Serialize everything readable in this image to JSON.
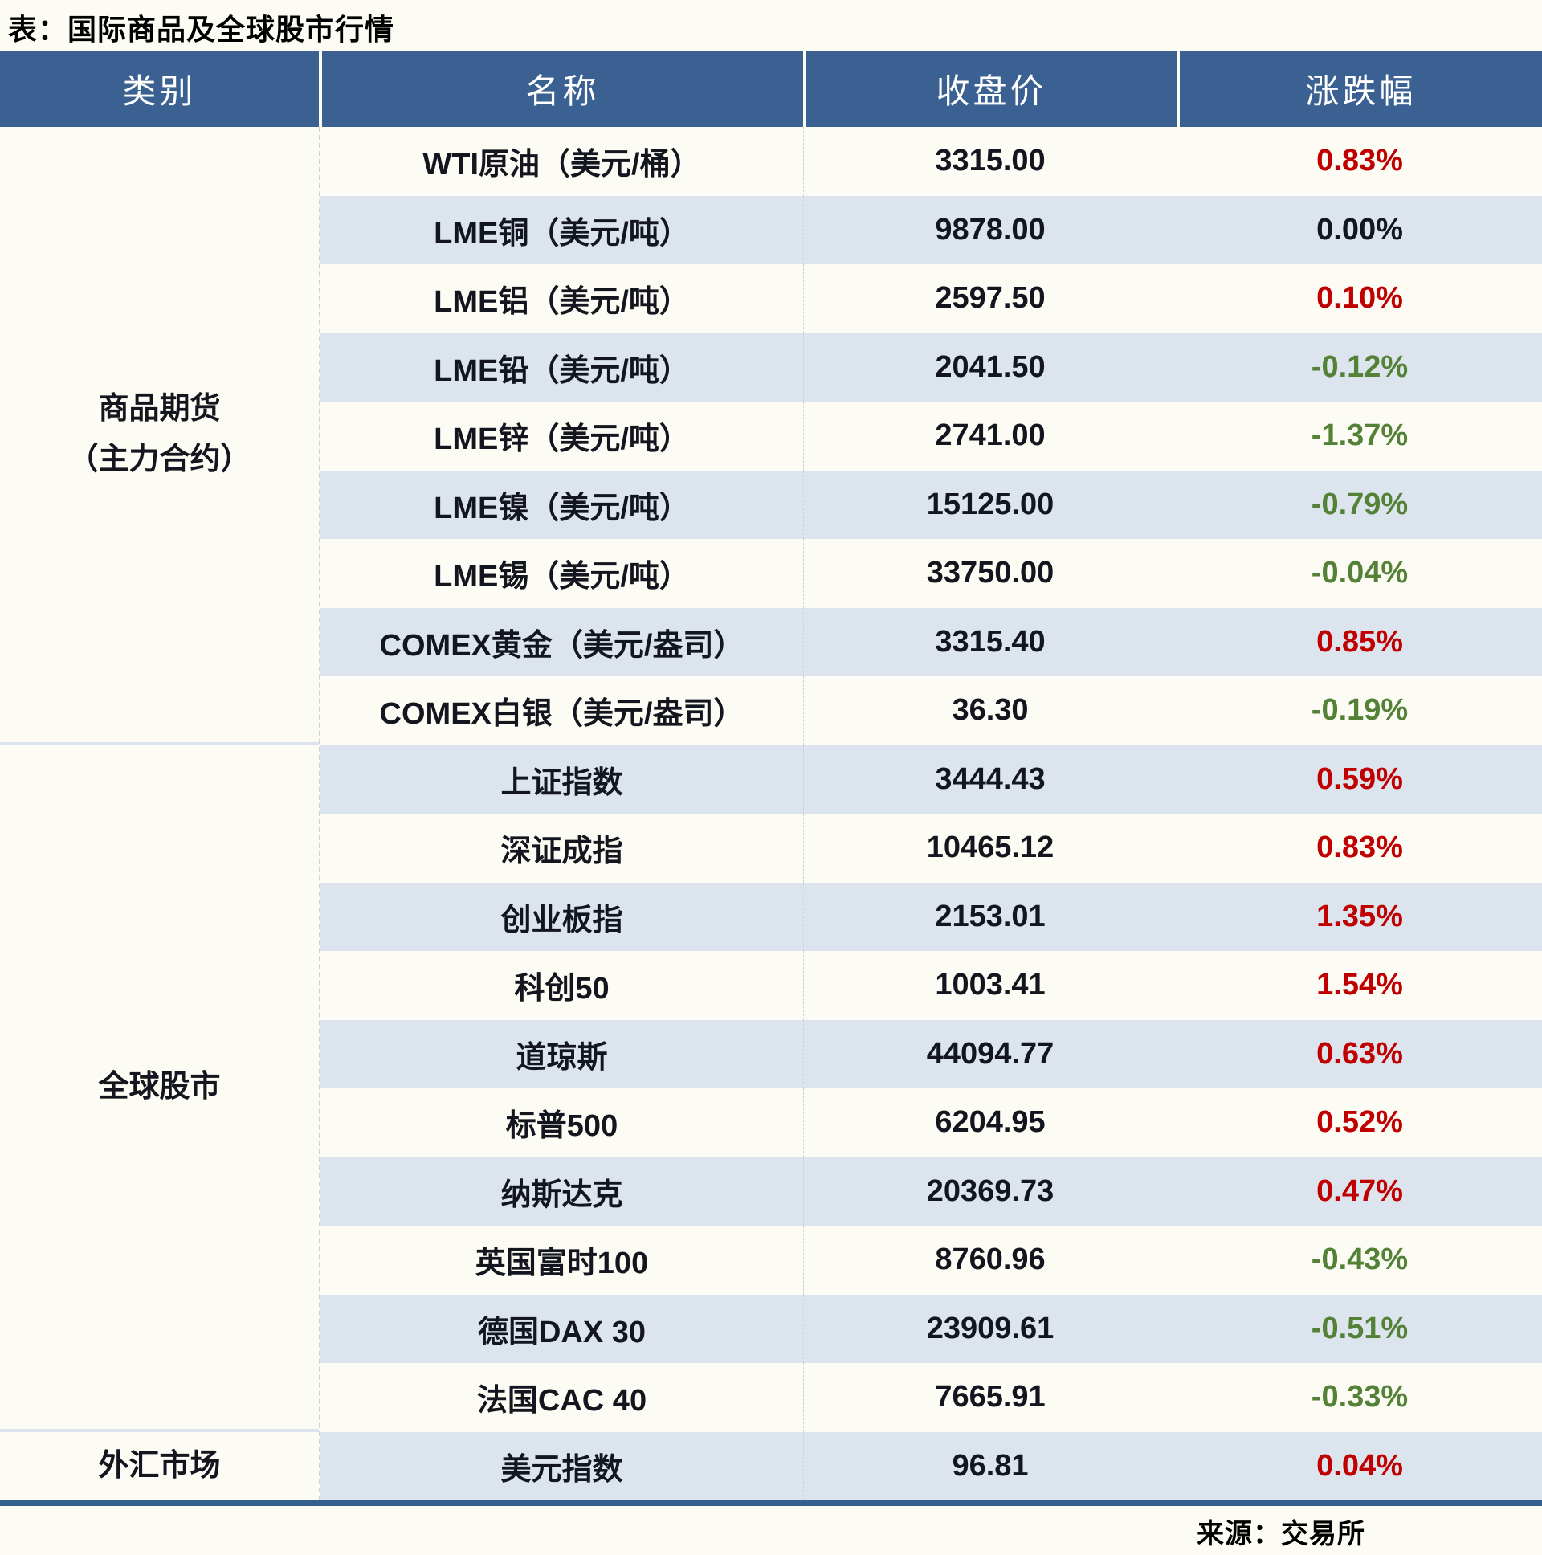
{
  "title": "表：国际商品及全球股市行情",
  "source": "来源：交易所",
  "columns": [
    "类别",
    "名称",
    "收盘价",
    "涨跌幅"
  ],
  "sections": [
    {
      "category_lines": [
        "商品期货",
        "（主力合约）"
      ],
      "rows": [
        {
          "name": "WTI原油（美元/桶）",
          "close": "3315.00",
          "change": "0.83%",
          "direction": "up"
        },
        {
          "name": "LME铜（美元/吨）",
          "close": "9878.00",
          "change": "0.00%",
          "direction": "flat"
        },
        {
          "name": "LME铝（美元/吨）",
          "close": "2597.50",
          "change": "0.10%",
          "direction": "up"
        },
        {
          "name": "LME铅（美元/吨）",
          "close": "2041.50",
          "change": "-0.12%",
          "direction": "down"
        },
        {
          "name": "LME锌（美元/吨）",
          "close": "2741.00",
          "change": "-1.37%",
          "direction": "down"
        },
        {
          "name": "LME镍（美元/吨）",
          "close": "15125.00",
          "change": "-0.79%",
          "direction": "down"
        },
        {
          "name": "LME锡（美元/吨）",
          "close": "33750.00",
          "change": "-0.04%",
          "direction": "down"
        },
        {
          "name": "COMEX黄金（美元/盎司）",
          "close": "3315.40",
          "change": "0.85%",
          "direction": "up"
        },
        {
          "name": "COMEX白银（美元/盎司）",
          "close": "36.30",
          "change": "-0.19%",
          "direction": "down"
        }
      ]
    },
    {
      "category_lines": [
        "全球股市"
      ],
      "rows": [
        {
          "name": "上证指数",
          "close": "3444.43",
          "change": "0.59%",
          "direction": "up"
        },
        {
          "name": "深证成指",
          "close": "10465.12",
          "change": "0.83%",
          "direction": "up"
        },
        {
          "name": "创业板指",
          "close": "2153.01",
          "change": "1.35%",
          "direction": "up"
        },
        {
          "name": "科创50",
          "close": "1003.41",
          "change": "1.54%",
          "direction": "up"
        },
        {
          "name": "道琼斯",
          "close": "44094.77",
          "change": "0.63%",
          "direction": "up"
        },
        {
          "name": "标普500",
          "close": "6204.95",
          "change": "0.52%",
          "direction": "up"
        },
        {
          "name": "纳斯达克",
          "close": "20369.73",
          "change": "0.47%",
          "direction": "up"
        },
        {
          "name": "英国富时100",
          "close": "8760.96",
          "change": "-0.43%",
          "direction": "down"
        },
        {
          "name": "德国DAX 30",
          "close": "23909.61",
          "change": "-0.51%",
          "direction": "down"
        },
        {
          "name": "法国CAC 40",
          "close": "7665.91",
          "change": "-0.33%",
          "direction": "down"
        }
      ]
    },
    {
      "category_lines": [
        "外汇市场"
      ],
      "rows": [
        {
          "name": "美元指数",
          "close": "96.81",
          "change": "0.04%",
          "direction": "up"
        }
      ]
    }
  ],
  "colors": {
    "header_bg": "#3a6191",
    "stripe_row_bg": "#dce4ee",
    "page_bg": "#fdfcf4",
    "up_red": "#c00000",
    "down_green": "#538135",
    "flat_dark": "#14161f",
    "bottom_line_blue": "#35618e"
  },
  "chart_data": {
    "type": "table",
    "title": "表：国际商品及全球股市行情",
    "columns": [
      "类别",
      "名称",
      "收盘价",
      "涨跌幅"
    ],
    "rows": [
      [
        "商品期货（主力合约）",
        "WTI原油（美元/桶）",
        3315.0,
        "0.83%"
      ],
      [
        "商品期货（主力合约）",
        "LME铜（美元/吨）",
        9878.0,
        "0.00%"
      ],
      [
        "商品期货（主力合约）",
        "LME铝（美元/吨）",
        2597.5,
        "0.10%"
      ],
      [
        "商品期货（主力合约）",
        "LME铅（美元/吨）",
        2041.5,
        "-0.12%"
      ],
      [
        "商品期货（主力合约）",
        "LME锌（美元/吨）",
        2741.0,
        "-1.37%"
      ],
      [
        "商品期货（主力合约）",
        "LME镍（美元/吨）",
        15125.0,
        "-0.79%"
      ],
      [
        "商品期货（主力合约）",
        "LME锡（美元/吨）",
        33750.0,
        "-0.04%"
      ],
      [
        "商品期货（主力合约）",
        "COMEX黄金（美元/盎司）",
        3315.4,
        "0.85%"
      ],
      [
        "商品期货（主力合约）",
        "COMEX白银（美元/盎司）",
        36.3,
        "-0.19%"
      ],
      [
        "全球股市",
        "上证指数",
        3444.43,
        "0.59%"
      ],
      [
        "全球股市",
        "深证成指",
        10465.12,
        "0.83%"
      ],
      [
        "全球股市",
        "创业板指",
        2153.01,
        "1.35%"
      ],
      [
        "全球股市",
        "科创50",
        1003.41,
        "1.54%"
      ],
      [
        "全球股市",
        "道琼斯",
        44094.77,
        "0.63%"
      ],
      [
        "全球股市",
        "标普500",
        6204.95,
        "0.52%"
      ],
      [
        "全球股市",
        "纳斯达克",
        20369.73,
        "0.47%"
      ],
      [
        "全球股市",
        "英国富时100",
        8760.96,
        "-0.43%"
      ],
      [
        "全球股市",
        "德国DAX 30",
        23909.61,
        "-0.51%"
      ],
      [
        "全球股市",
        "法国CAC 40",
        7665.91,
        "-0.33%"
      ],
      [
        "外汇市场",
        "美元指数",
        96.81,
        "0.04%"
      ]
    ],
    "source_note": "来源：交易所"
  }
}
